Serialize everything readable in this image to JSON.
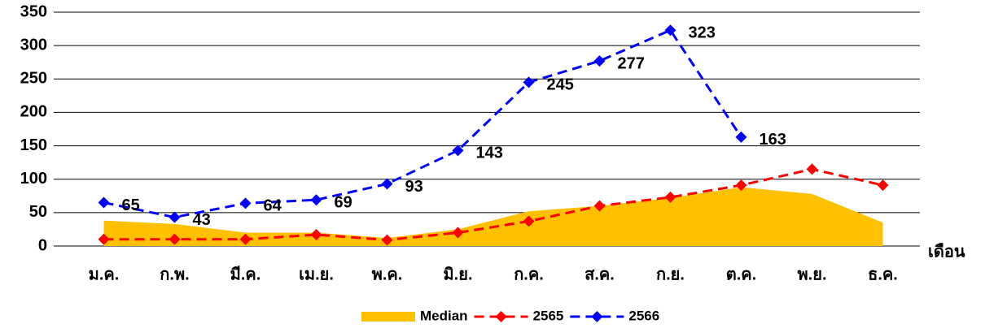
{
  "chart_data": {
    "type": "line",
    "x_label": "เดือน",
    "categories": [
      "ม.ค.",
      "ก.พ.",
      "มี.ค.",
      "เม.ย.",
      "พ.ค.",
      "มิ.ย.",
      "ก.ค.",
      "ส.ค.",
      "ก.ย.",
      "ต.ค.",
      "พ.ย.",
      "ธ.ค."
    ],
    "series": [
      {
        "name": "Median",
        "type": "area",
        "color": "#ffc000",
        "values": [
          38,
          33,
          20,
          20,
          12,
          25,
          52,
          60,
          72,
          88,
          78,
          35
        ]
      },
      {
        "name": "2565",
        "type": "line",
        "dashed": true,
        "marker": "diamond",
        "color": "#ff0000",
        "values": [
          10,
          10,
          10,
          17,
          9,
          20,
          37,
          60,
          73,
          91,
          115,
          91
        ]
      },
      {
        "name": "2566",
        "type": "line",
        "dashed": true,
        "marker": "diamond",
        "color": "#0000ff",
        "data_labels": true,
        "values": [
          65,
          43,
          64,
          69,
          93,
          143,
          245,
          277,
          323,
          163,
          null,
          null
        ]
      }
    ],
    "ylim": [
      0,
      350
    ],
    "yticks": [
      0,
      50,
      100,
      150,
      200,
      250,
      300,
      350
    ],
    "grid": true,
    "legend": "bottom"
  }
}
